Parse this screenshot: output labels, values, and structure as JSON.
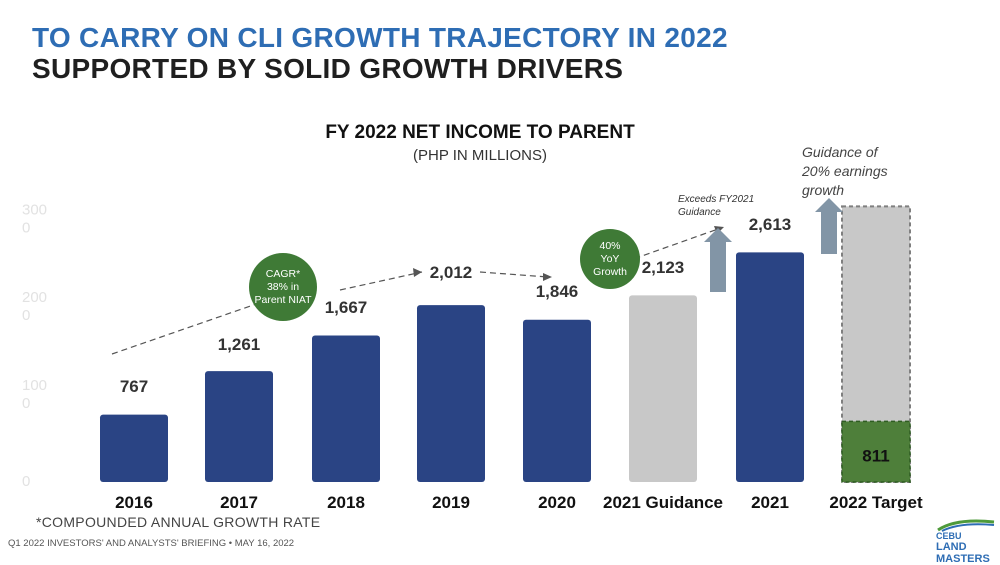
{
  "header": {
    "title_line1": "TO CARRY ON CLI GROWTH TRAJECTORY IN 2022",
    "title_line2": "SUPPORTED BY SOLID GROWTH DRIVERS"
  },
  "footnote": "*COMPOUNDED ANNUAL GROWTH RATE",
  "footer": "Q1 2022 INVESTORS' AND ANALYSTS' BRIEFING • MAY 16, 2022",
  "logo": {
    "top": "CEBU",
    "bottom": "LAND MASTERS"
  },
  "chart_data": {
    "type": "bar",
    "title": "FY 2022 NET INCOME TO PARENT",
    "subtitle": "(PHP IN MILLIONS)",
    "categories": [
      "2016",
      "2017",
      "2018",
      "2019",
      "2020",
      "2021 Guidance",
      "2021",
      "2022 Target"
    ],
    "values": [
      767,
      1261,
      1667,
      2012,
      1846,
      2123,
      2613,
      3136
    ],
    "value_labels": [
      "767",
      "1,261",
      "1,667",
      "2,012",
      "1,846",
      "2,123",
      "2,613",
      ""
    ],
    "bar_styles": [
      "actual",
      "actual",
      "actual",
      "actual",
      "actual",
      "guidance",
      "actual",
      "target"
    ],
    "target_achieved": {
      "value": 811,
      "label": "811"
    },
    "ylim": [
      0,
      3000
    ],
    "yticks": [
      "0",
      "100\n0",
      "200\n0",
      "300\n0"
    ],
    "colors": {
      "actual": "#2A4484",
      "guidance": "#C8C8C8",
      "target_achieved": "#4E7F3A",
      "target_border": "#7F7F7F",
      "arrow": "#8295A6",
      "bubble": "#3F7A36"
    },
    "bubbles": [
      {
        "text": [
          "CAGR*",
          "38% in",
          "Parent NIAT"
        ]
      },
      {
        "text": [
          "40%",
          "YoY",
          "Growth"
        ]
      }
    ],
    "annotations": {
      "mid": [
        "Exceeds FY2021",
        "Guidance"
      ],
      "right": [
        "Guidance of",
        "20% earnings",
        "growth"
      ]
    }
  }
}
